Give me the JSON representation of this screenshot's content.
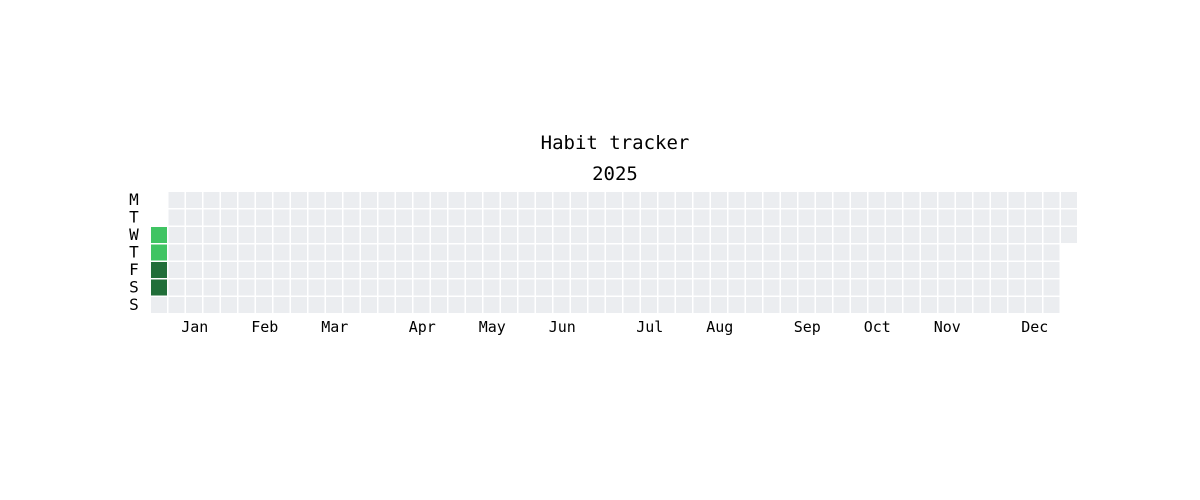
{
  "chart_data": {
    "type": "heatmap",
    "title": "Habit tracker",
    "subtitle": "2025",
    "year": 2025,
    "day_labels": [
      "M",
      "T",
      "W",
      "T",
      "F",
      "S",
      "S"
    ],
    "month_labels": [
      "Jan",
      "Feb",
      "Mar",
      "Apr",
      "May",
      "Jun",
      "Jul",
      "Aug",
      "Sep",
      "Oct",
      "Nov",
      "Dec"
    ],
    "active_days": [
      {
        "date": "2025-01-01",
        "level": 2
      },
      {
        "date": "2025-01-02",
        "level": 2
      },
      {
        "date": "2025-01-03",
        "level": 4
      },
      {
        "date": "2025-01-04",
        "level": 4
      }
    ],
    "colors": {
      "empty": "#ebedf0",
      "level2": "#40c463",
      "level4": "#216e39"
    }
  }
}
